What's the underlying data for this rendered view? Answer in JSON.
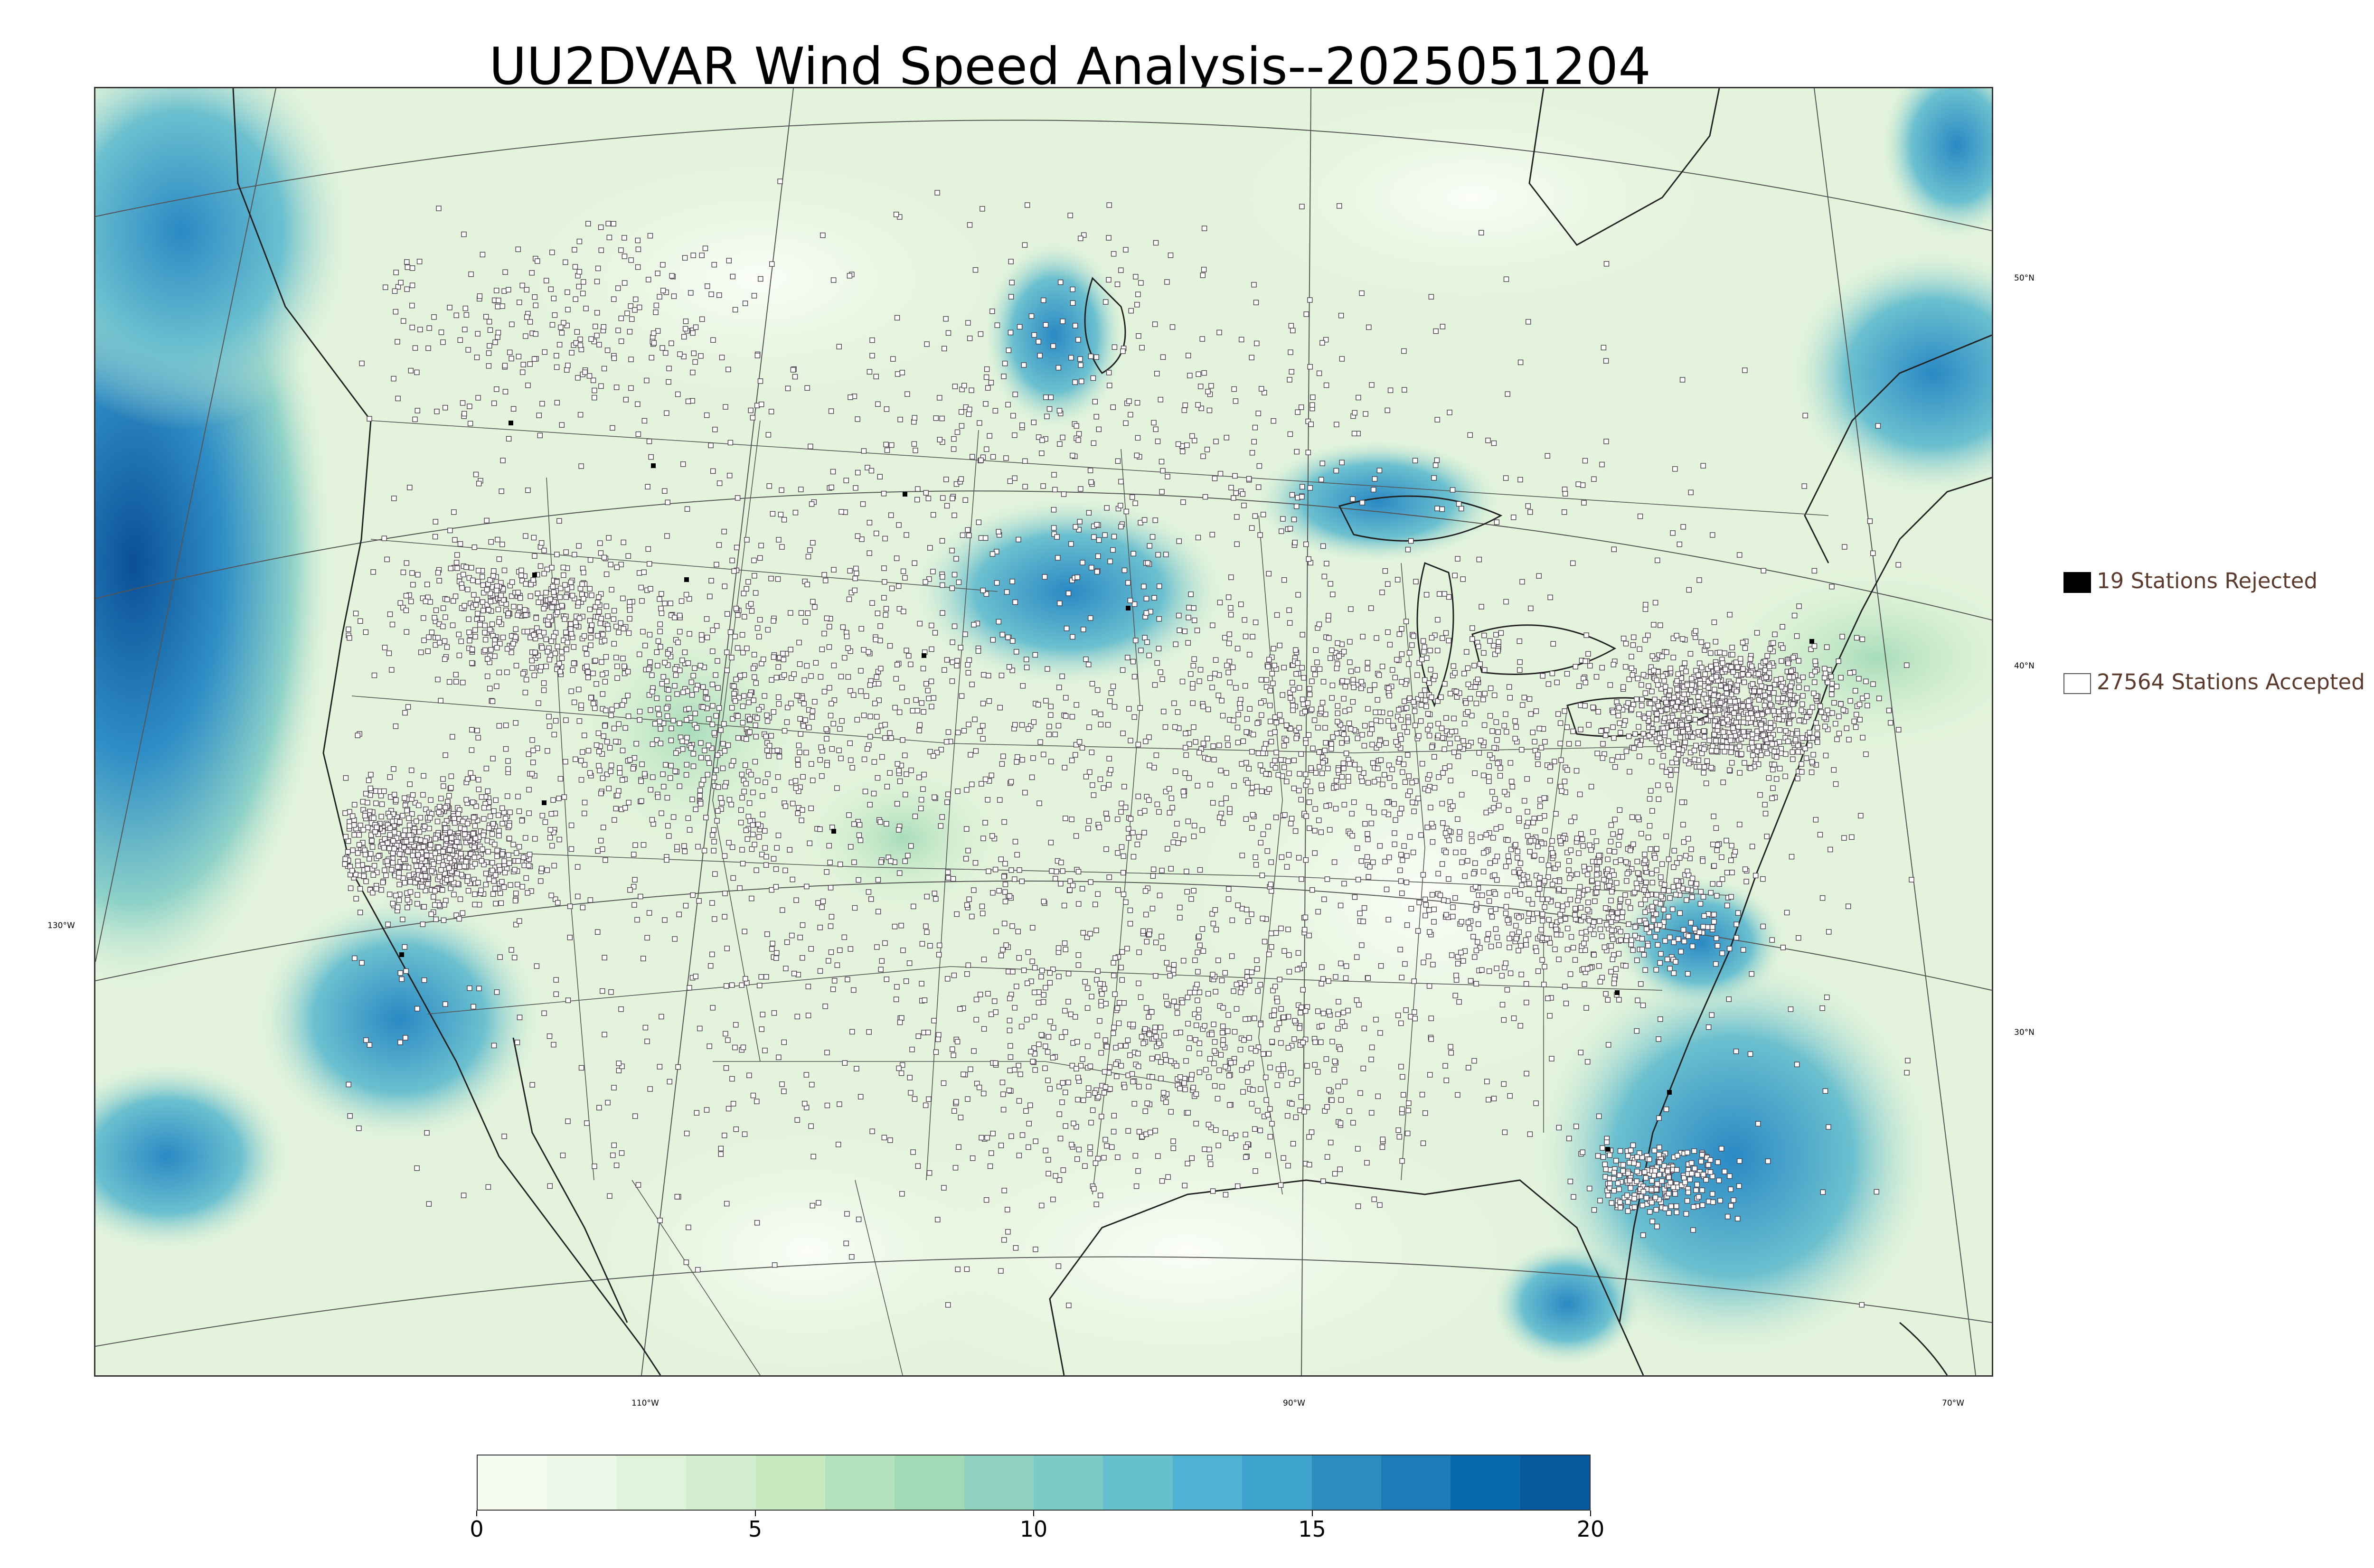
{
  "title": "UU2DVAR Wind Speed Analysis--2025051204",
  "legend": {
    "rejected": {
      "label": "19 Stations Rejected",
      "color": "#000000"
    },
    "accepted": {
      "label": "27564 Stations Accepted",
      "color": "#ffffff"
    }
  },
  "latitude_labels": [
    "50°N",
    "40°N",
    "30°N",
    "130°W"
  ],
  "longitude_labels": [
    "110°W",
    "90°W",
    "70°W"
  ],
  "colorbar": {
    "min": 0,
    "max": 20,
    "ticks": [
      "0",
      "5",
      "10",
      "15",
      "20"
    ],
    "colors": [
      "#f7fcf0",
      "#eef8e8",
      "#e0f3db",
      "#d3eece",
      "#c7e9c0",
      "#b4e1bd",
      "#a1dab4",
      "#8fd2bf",
      "#7bccc4",
      "#65bfcc",
      "#4eb3d3",
      "#3da3cd",
      "#2b8cbe",
      "#1d7bb7",
      "#0868ac",
      "#08589e"
    ]
  },
  "map_colors": {
    "land": "#e4f4dc",
    "calm": "#f4fbee",
    "moderate": "#b9e3c2",
    "strong": "#4eb3d3",
    "very_strong": "#1d6fae",
    "boundary": "#333333"
  }
}
